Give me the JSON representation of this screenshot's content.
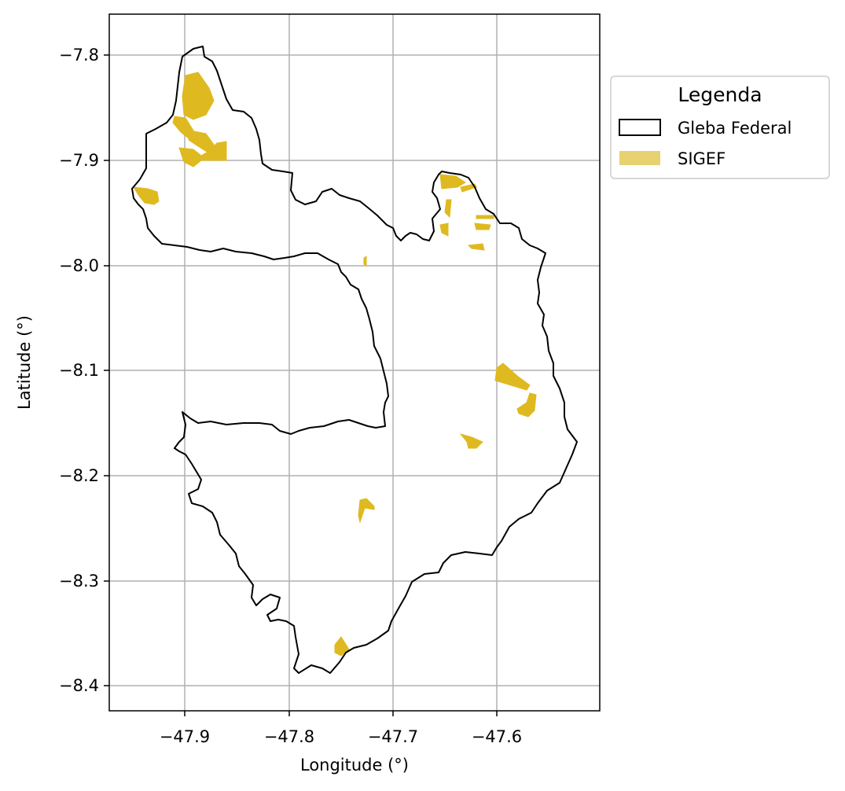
{
  "map": {
    "xlabel": "Longitude (°)",
    "ylabel": "Latitude (°)",
    "x_ticks": [
      "−47.9",
      "−47.8",
      "−47.7",
      "−47.6"
    ],
    "y_ticks": [
      "−7.8",
      "−7.9",
      "−8.0",
      "−8.1",
      "−8.2",
      "−8.3",
      "−8.4"
    ],
    "grid": true,
    "legend": {
      "title": "Legenda",
      "placement": "outside-right-top",
      "items": [
        {
          "label": "Gleba Federal",
          "style": "outline",
          "color": "#000000"
        },
        {
          "label": "SIGEF",
          "style": "fill",
          "color": "#dfb920"
        }
      ]
    },
    "colors": {
      "boundary": "#000000",
      "parcels": "#dfb920",
      "grid": "#b0b0b0"
    }
  }
}
